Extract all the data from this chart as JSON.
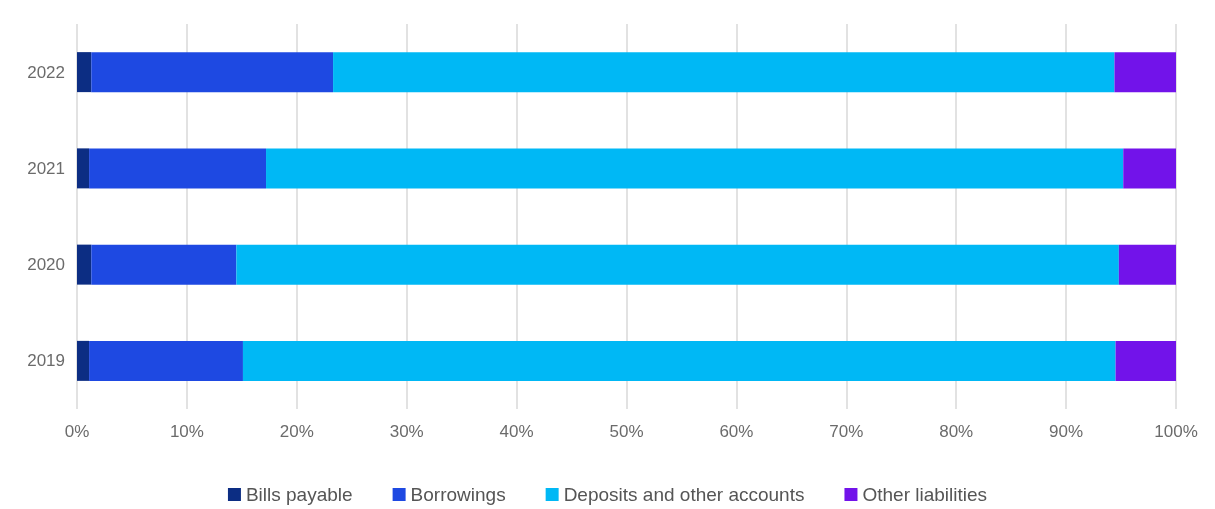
{
  "chart_data": {
    "type": "bar",
    "orientation": "horizontal",
    "stacked": true,
    "categories": [
      "2022",
      "2021",
      "2020",
      "2019"
    ],
    "series": [
      {
        "name": "Bills payable",
        "color": "#0c2d83",
        "values": [
          1.3,
          1.1,
          1.3,
          1.1
        ]
      },
      {
        "name": "Borrowings",
        "color": "#1e49e2",
        "values": [
          22.0,
          16.1,
          13.2,
          14.0
        ]
      },
      {
        "name": "Deposits and other accounts",
        "color": "#00b8f5",
        "values": [
          71.1,
          78.0,
          80.3,
          79.4
        ]
      },
      {
        "name": "Other liabilities",
        "color": "#7213ea",
        "values": [
          5.6,
          4.8,
          5.2,
          5.5
        ]
      }
    ],
    "xlim": [
      0,
      100
    ],
    "xticks": [
      {
        "value": 0,
        "label": "0%"
      },
      {
        "value": 10,
        "label": "10%"
      },
      {
        "value": 20,
        "label": "20%"
      },
      {
        "value": 30,
        "label": "30%"
      },
      {
        "value": 40,
        "label": "40%"
      },
      {
        "value": 50,
        "label": "50%"
      },
      {
        "value": 60,
        "label": "60%"
      },
      {
        "value": 70,
        "label": "70%"
      },
      {
        "value": 80,
        "label": "80%"
      },
      {
        "value": 90,
        "label": "90%"
      },
      {
        "value": 100,
        "label": "100%"
      }
    ],
    "grid": "x",
    "legend": "bottom"
  }
}
